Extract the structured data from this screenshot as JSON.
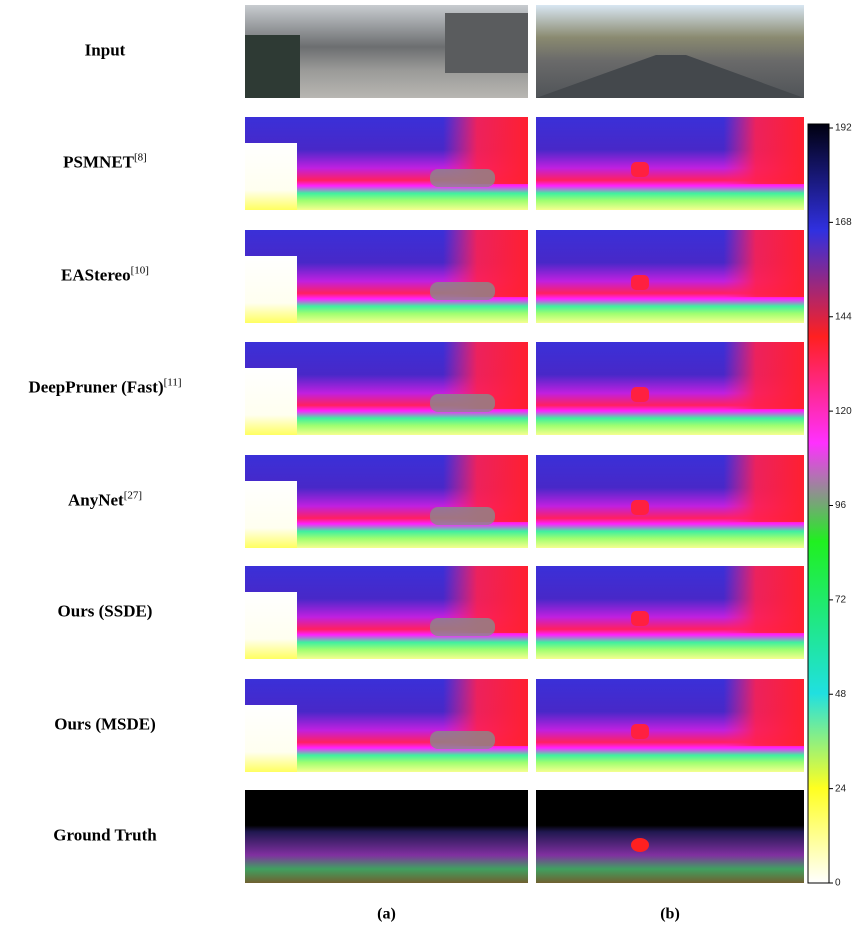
{
  "rows": [
    {
      "label": "Input"
    },
    {
      "label": "PSMNET",
      "ref": "[8]"
    },
    {
      "label": "EAStereo",
      "ref": "[10]"
    },
    {
      "label": "DeepPruner (Fast)",
      "ref": "[11]"
    },
    {
      "label": "AnyNet",
      "ref": "[27]"
    },
    {
      "label": "Ours (SSDE)"
    },
    {
      "label": "Ours (MSDE)"
    },
    {
      "label": "Ground Truth"
    }
  ],
  "columns": [
    "(a)",
    "(b)"
  ],
  "colorbar": {
    "lim": [
      0,
      192
    ],
    "ticks": [
      0,
      24,
      48,
      72,
      96,
      120,
      144,
      168,
      192
    ]
  }
}
